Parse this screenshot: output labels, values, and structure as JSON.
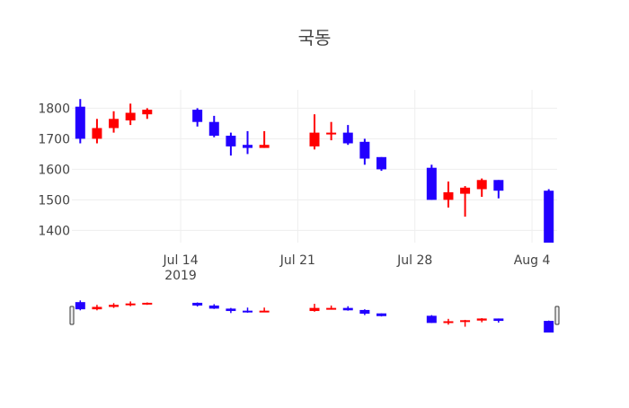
{
  "chart_data": {
    "type": "candlestick",
    "title": "국동",
    "xlabel": "",
    "ylabel": "",
    "x_range": [
      "2019-07-08",
      "2019-08-05"
    ],
    "ylim": [
      1360,
      1860
    ],
    "yticks": [
      1400,
      1500,
      1600,
      1700,
      1800
    ],
    "xticks": [
      {
        "date": "2019-07-14",
        "label": "Jul 14",
        "sublabel": "2019"
      },
      {
        "date": "2019-07-21",
        "label": "Jul 21",
        "sublabel": ""
      },
      {
        "date": "2019-07-28",
        "label": "Jul 28",
        "sublabel": ""
      },
      {
        "date": "2019-08-04",
        "label": "Aug 4",
        "sublabel": ""
      }
    ],
    "colors": {
      "increasing": "#ff0000",
      "decreasing": "#2200ff",
      "grid": "#eeeeee",
      "text": "#444444"
    },
    "rangeslider": true,
    "grid": true,
    "candles": [
      {
        "date": "2019-07-08",
        "open": 1805,
        "high": 1830,
        "low": 1685,
        "close": 1700
      },
      {
        "date": "2019-07-09",
        "open": 1700,
        "high": 1765,
        "low": 1685,
        "close": 1735
      },
      {
        "date": "2019-07-10",
        "open": 1735,
        "high": 1790,
        "low": 1720,
        "close": 1765
      },
      {
        "date": "2019-07-11",
        "open": 1760,
        "high": 1815,
        "low": 1745,
        "close": 1785
      },
      {
        "date": "2019-07-12",
        "open": 1780,
        "high": 1800,
        "low": 1765,
        "close": 1795
      },
      {
        "date": "2019-07-15",
        "open": 1795,
        "high": 1800,
        "low": 1740,
        "close": 1755
      },
      {
        "date": "2019-07-16",
        "open": 1755,
        "high": 1775,
        "low": 1705,
        "close": 1710
      },
      {
        "date": "2019-07-17",
        "open": 1710,
        "high": 1720,
        "low": 1645,
        "close": 1675
      },
      {
        "date": "2019-07-18",
        "open": 1680,
        "high": 1725,
        "low": 1650,
        "close": 1670
      },
      {
        "date": "2019-07-19",
        "open": 1670,
        "high": 1725,
        "low": 1670,
        "close": 1680
      },
      {
        "date": "2019-07-22",
        "open": 1675,
        "high": 1780,
        "low": 1665,
        "close": 1720
      },
      {
        "date": "2019-07-23",
        "open": 1715,
        "high": 1755,
        "low": 1695,
        "close": 1720
      },
      {
        "date": "2019-07-24",
        "open": 1720,
        "high": 1745,
        "low": 1680,
        "close": 1685
      },
      {
        "date": "2019-07-25",
        "open": 1690,
        "high": 1700,
        "low": 1615,
        "close": 1635
      },
      {
        "date": "2019-07-26",
        "open": 1640,
        "high": 1640,
        "low": 1595,
        "close": 1600
      },
      {
        "date": "2019-07-29",
        "open": 1605,
        "high": 1615,
        "low": 1500,
        "close": 1500
      },
      {
        "date": "2019-07-30",
        "open": 1500,
        "high": 1560,
        "low": 1475,
        "close": 1525
      },
      {
        "date": "2019-07-31",
        "open": 1520,
        "high": 1545,
        "low": 1445,
        "close": 1540
      },
      {
        "date": "2019-08-01",
        "open": 1535,
        "high": 1570,
        "low": 1510,
        "close": 1565
      },
      {
        "date": "2019-08-02",
        "open": 1565,
        "high": 1565,
        "low": 1505,
        "close": 1530
      },
      {
        "date": "2019-08-05",
        "open": 1530,
        "high": 1535,
        "low": 1360,
        "close": 1360
      }
    ]
  }
}
